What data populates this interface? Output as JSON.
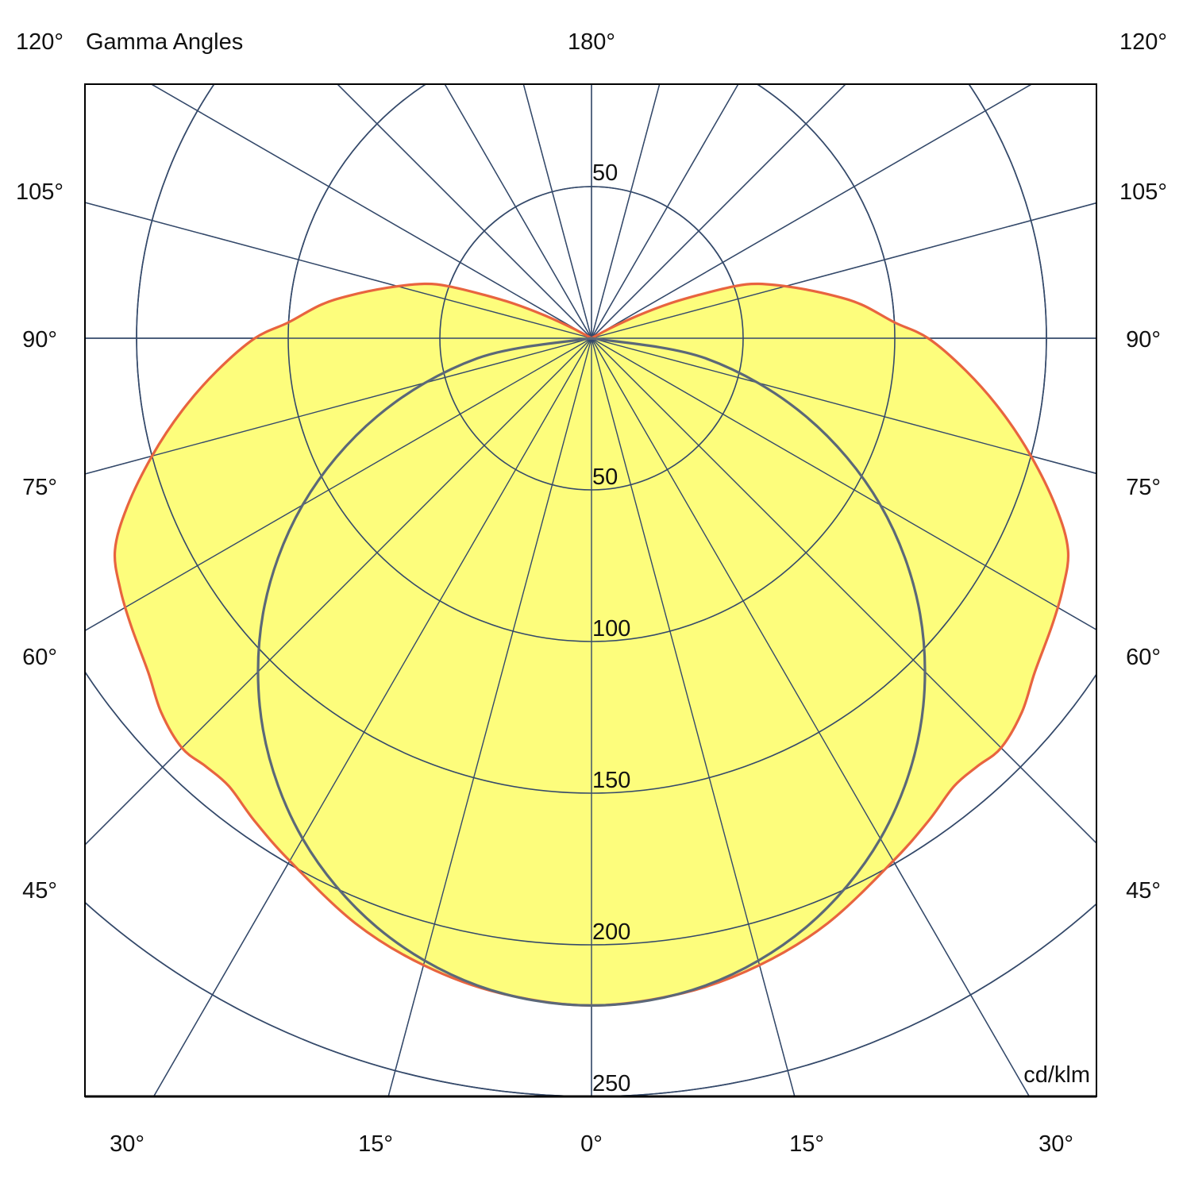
{
  "chart_data": {
    "type": "polar",
    "title": "Gamma Angles",
    "unit": "cd/klm",
    "top_label": "180°",
    "left_angle_labels": [
      "120°",
      "105°",
      "90°",
      "75°",
      "60°",
      "45°"
    ],
    "right_angle_labels": [
      "120°",
      "105°",
      "90°",
      "75°",
      "60°",
      "45°"
    ],
    "bottom_angle_labels": [
      "30°",
      "15°",
      "0°",
      "15°",
      "30°"
    ],
    "radial_ticks": [
      50,
      100,
      150,
      200,
      250
    ],
    "radial_labels": {
      "upper": "50",
      "lower": [
        "50",
        "100",
        "150",
        "200",
        "250"
      ]
    },
    "radial_max": 250,
    "angle_grid_step_deg": 15,
    "grid": true,
    "series": [
      {
        "style": "filled",
        "symmetric": true,
        "gamma_deg": [
          0,
          8,
          15,
          22,
          30,
          35,
          39,
          42,
          45,
          49,
          53,
          58,
          62,
          66,
          70,
          75,
          80,
          85,
          90,
          93,
          97,
          100,
          104,
          108,
          110,
          112,
          114,
          116,
          118,
          120
        ],
        "values": [
          220,
          218,
          214,
          208,
          199,
          194,
          190,
          190,
          191,
          188,
          183,
          179,
          176,
          172,
          163,
          150,
          137,
          124,
          111,
          100,
          90,
          81,
          69,
          58,
          50,
          38,
          28,
          17,
          7,
          0
        ]
      },
      {
        "style": "line",
        "symmetric": true,
        "gamma_deg": [
          0,
          10,
          20,
          30,
          40,
          50,
          60,
          70,
          80,
          90
        ],
        "values": [
          220,
          216.7,
          206.7,
          190.5,
          168.5,
          141.4,
          110,
          75.2,
          38.2,
          0
        ]
      }
    ],
    "colors": {
      "fill": "#fdfd7c",
      "series1_stroke": "#e8643f",
      "series2_stroke": "#5b6878",
      "grid": "#34496a",
      "frame": "#000000"
    }
  }
}
